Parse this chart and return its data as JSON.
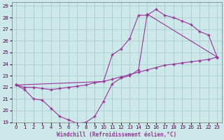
{
  "xlabel": "Windchill (Refroidissement éolien,°C)",
  "bg_color": "#cce8e8",
  "grid_color": "#aacccc",
  "line_color": "#993399",
  "xlim": [
    -0.5,
    23.5
  ],
  "ylim": [
    19,
    29.3
  ],
  "xticks": [
    0,
    1,
    2,
    3,
    4,
    5,
    6,
    7,
    8,
    9,
    10,
    11,
    12,
    13,
    14,
    15,
    16,
    17,
    18,
    19,
    20,
    21,
    22,
    23
  ],
  "yticks": [
    19,
    20,
    21,
    22,
    23,
    24,
    25,
    26,
    27,
    28,
    29
  ],
  "line1_x": [
    0,
    1,
    2,
    3,
    4,
    5,
    6,
    7,
    8,
    9,
    10,
    11,
    12,
    13,
    14,
    15,
    16,
    17,
    18,
    19,
    20,
    21,
    22,
    23
  ],
  "line1_y": [
    22.2,
    22.0,
    22.0,
    21.9,
    21.8,
    21.9,
    22.0,
    22.1,
    22.2,
    22.4,
    22.5,
    22.7,
    22.9,
    23.1,
    23.3,
    23.5,
    23.7,
    23.9,
    24.0,
    24.1,
    24.2,
    24.3,
    24.4,
    24.6
  ],
  "line2_x": [
    0,
    10,
    11,
    12,
    13,
    14,
    15,
    16,
    17,
    18,
    19,
    20,
    21,
    22,
    23
  ],
  "line2_y": [
    22.2,
    22.5,
    24.8,
    25.3,
    26.2,
    28.2,
    28.2,
    28.7,
    28.2,
    28.0,
    27.7,
    27.4,
    26.8,
    26.5,
    24.6
  ],
  "line3_x": [
    0,
    1,
    2,
    3,
    4,
    5,
    6,
    7,
    8,
    9,
    10,
    11,
    12,
    13,
    14,
    15,
    23
  ],
  "line3_y": [
    22.2,
    21.8,
    21.0,
    20.9,
    20.2,
    19.5,
    19.2,
    18.9,
    19.0,
    19.5,
    20.8,
    22.3,
    22.8,
    23.0,
    23.5,
    28.3,
    24.6
  ]
}
